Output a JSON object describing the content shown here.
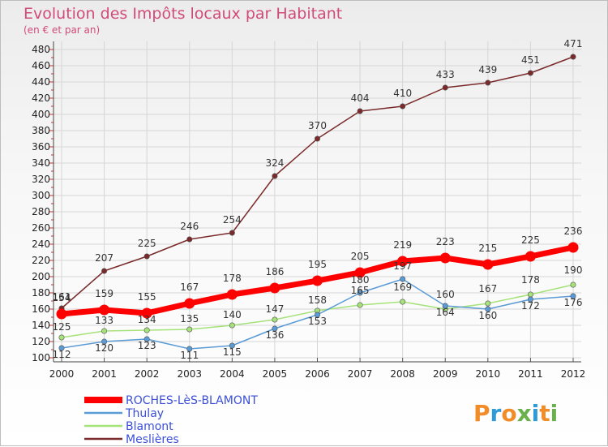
{
  "chart_data": {
    "type": "line",
    "title": "Evolution des Impôts locaux par Habitant",
    "subtitle": "(en € et par an)",
    "x": [
      "2000",
      "2001",
      "2002",
      "2003",
      "2004",
      "2005",
      "2006",
      "2007",
      "2008",
      "2009",
      "2010",
      "2011",
      "2012"
    ],
    "ylim": [
      100,
      480
    ],
    "yticks": [
      100,
      120,
      140,
      160,
      180,
      200,
      220,
      240,
      260,
      280,
      300,
      320,
      340,
      360,
      380,
      400,
      420,
      440,
      460,
      480
    ],
    "grid": true,
    "series": [
      {
        "name": "ROCHES-LèS-BLAMONT",
        "color": "#ff0000",
        "values": [
          154,
          159,
          155,
          167,
          178,
          186,
          195,
          205,
          219,
          223,
          215,
          225,
          236
        ]
      },
      {
        "name": "Thulay",
        "color": "#5b9bd5",
        "values": [
          112,
          120,
          123,
          111,
          115,
          136,
          153,
          180,
          197,
          164,
          160,
          172,
          176
        ]
      },
      {
        "name": "Blamont",
        "color": "#a6e27a",
        "values": [
          125,
          133,
          134,
          135,
          140,
          147,
          158,
          165,
          169,
          160,
          167,
          178,
          190
        ]
      },
      {
        "name": "Meslières",
        "color": "#7a2a2a",
        "values": [
          161,
          207,
          225,
          246,
          254,
          324,
          370,
          404,
          410,
          433,
          439,
          451,
          471
        ]
      }
    ]
  },
  "brand": {
    "logo_text": "Proxiti",
    "colors": [
      "#f28c28",
      "#2e9ad6",
      "#f28c28",
      "#6ab04c",
      "#2e9ad6",
      "#f28c28",
      "#6ab04c"
    ]
  }
}
